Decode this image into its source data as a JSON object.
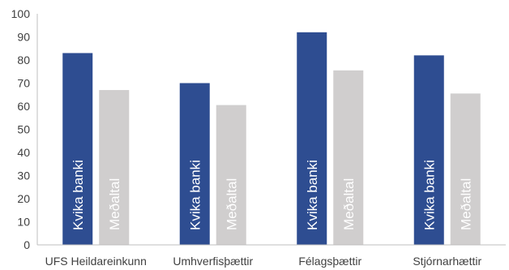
{
  "chart_data": {
    "type": "bar",
    "title": "",
    "xlabel": "",
    "ylabel": "",
    "ylim": [
      0,
      100
    ],
    "yticks": [
      0,
      10,
      20,
      30,
      40,
      50,
      60,
      70,
      80,
      90,
      100
    ],
    "grid": false,
    "legend": "none",
    "categories": [
      "UFS Heildareinkunn",
      "Umhverfisþættir",
      "Félagsþættir",
      "Stjórnarhættir"
    ],
    "series": [
      {
        "name": "Kvika banki",
        "color": "#2e4d91",
        "values": [
          83,
          70,
          92,
          82
        ]
      },
      {
        "name": "Meðaltal",
        "color": "#d0cece",
        "values": [
          67,
          60.5,
          75.5,
          65.5
        ]
      }
    ]
  }
}
